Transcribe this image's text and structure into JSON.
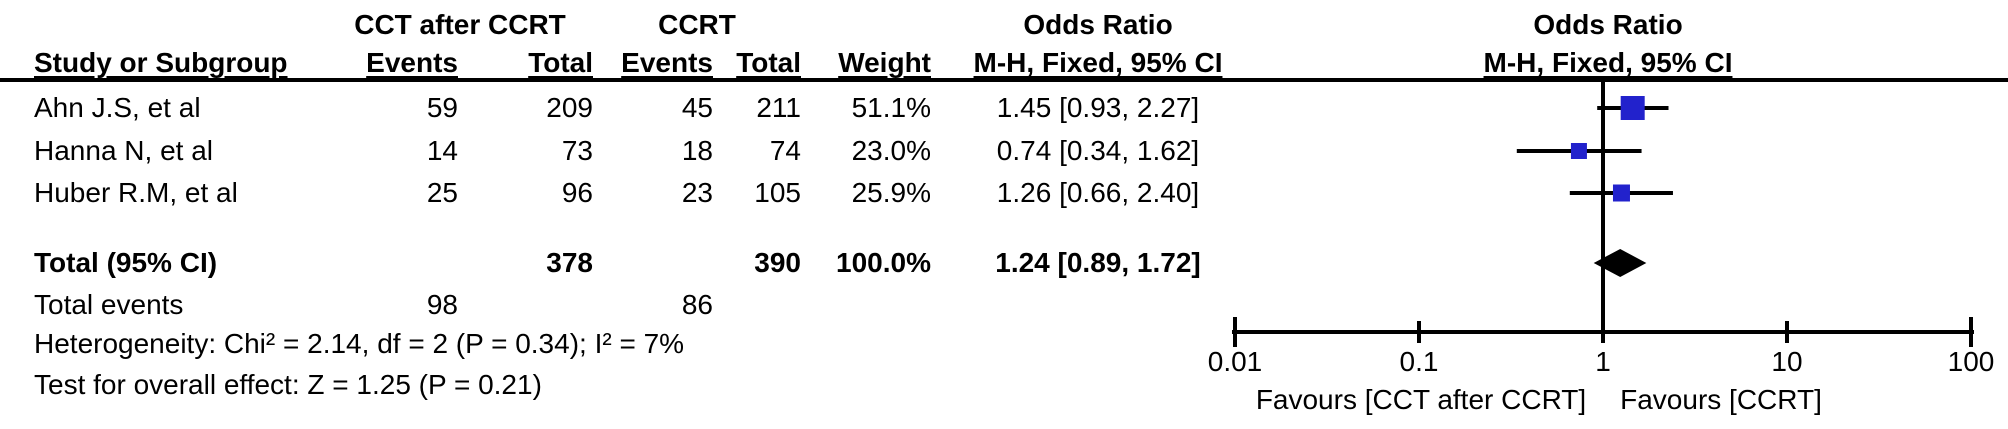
{
  "table": {
    "group_headers": {
      "cct": "CCT after CCRT",
      "ccrt": "CCRT",
      "or_left": "Odds Ratio",
      "or_right": "Odds Ratio"
    },
    "columns": {
      "study": "Study or Subgroup",
      "events1": "Events",
      "total1": "Total",
      "events2": "Events",
      "total2": "Total",
      "weight": "Weight",
      "mh_left": "M-H, Fixed, 95% CI",
      "mh_right": "M-H, Fixed, 95% CI"
    },
    "rows": [
      {
        "study": "Ahn J.S, et al",
        "events1": "59",
        "total1": "209",
        "events2": "45",
        "total2": "211",
        "weight": "51.1%",
        "or_ci": "1.45 [0.93, 2.27]"
      },
      {
        "study": "Hanna N, et al",
        "events1": "14",
        "total1": "73",
        "events2": "18",
        "total2": "74",
        "weight": "23.0%",
        "or_ci": "0.74 [0.34, 1.62]"
      },
      {
        "study": "Huber R.M, et al",
        "events1": "25",
        "total1": "96",
        "events2": "23",
        "total2": "105",
        "weight": "25.9%",
        "or_ci": "1.26 [0.66, 2.40]"
      }
    ],
    "total_row": {
      "label": "Total (95% CI)",
      "total1": "378",
      "total2": "390",
      "weight": "100.0%",
      "or_ci": "1.24 [0.89, 1.72]"
    },
    "total_events": {
      "label": "Total events",
      "events1": "98",
      "events2": "86"
    },
    "heterogeneity": "Heterogeneity: Chi² = 2.14, df = 2 (P = 0.34); I² = 7%",
    "overall_effect": "Test for overall effect: Z = 1.25 (P = 0.21)"
  },
  "chart_data": {
    "type": "forest",
    "scale": "log10",
    "xlim": [
      0.01,
      100
    ],
    "x_ticks": [
      0.01,
      0.1,
      1,
      10,
      100
    ],
    "null_line": 1,
    "effect_measure": "Odds Ratio, M-H, Fixed, 95% CI",
    "studies": [
      {
        "name": "Ahn J.S, et al",
        "or": 1.45,
        "ci_low": 0.93,
        "ci_high": 2.27,
        "weight_pct": 51.1
      },
      {
        "name": "Hanna N, et al",
        "or": 0.74,
        "ci_low": 0.34,
        "ci_high": 1.62,
        "weight_pct": 23.0
      },
      {
        "name": "Huber R.M, et al",
        "or": 1.26,
        "ci_low": 0.66,
        "ci_high": 2.4,
        "weight_pct": 25.9
      }
    ],
    "overall": {
      "or": 1.24,
      "ci_low": 0.89,
      "ci_high": 1.72,
      "weight_pct": 100.0
    },
    "favours_left": "Favours [CCT after CCRT]",
    "favours_right": "Favours [CCRT]",
    "marker_color": "#2222CC",
    "line_color": "#000000",
    "diamond_color": "#000000"
  }
}
